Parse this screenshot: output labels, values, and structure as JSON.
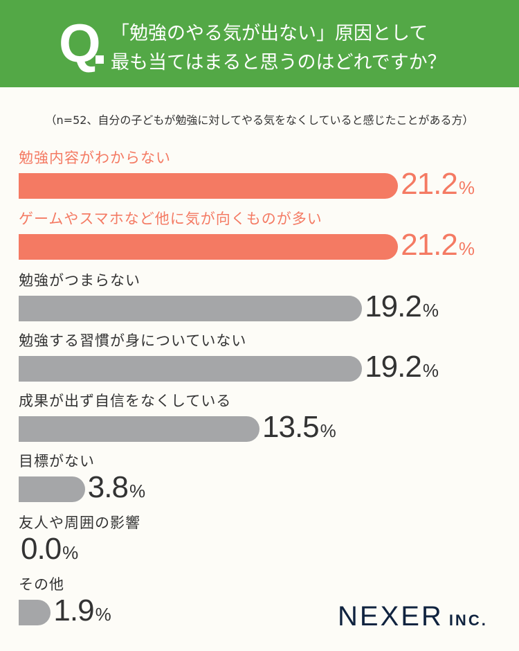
{
  "header": {
    "q_mark": "Q.",
    "title_line1": "「勉強のやる気が出ない」原因として",
    "title_line2": "最も当てはまると思うのはどれですか？"
  },
  "note": "（n=52、自分の子どもが勉強に対してやる気をなくしていると感じたことがある方）",
  "colors": {
    "header": "#53a846",
    "highlight": "#f47a63",
    "normal": "#a5a6a8",
    "text": "#333333",
    "background": "#fdfcf7"
  },
  "chart_data": {
    "type": "bar",
    "orientation": "horizontal",
    "title": "「勉強のやる気が出ない」原因として最も当てはまると思うのはどれですか？",
    "unit": "%",
    "categories": [
      "勉強内容がわからない",
      "ゲームやスマホなど他に気が向くものが多い",
      "勉強がつまらない",
      "勉強する習慣が身についていない",
      "成果が出ず自信をなくしている",
      "目標がない",
      "友人や周囲の影響",
      "その他"
    ],
    "values": [
      21.2,
      21.2,
      19.2,
      19.2,
      13.5,
      3.8,
      0.0,
      1.9
    ],
    "value_labels": [
      "21.2",
      "21.2",
      "19.2",
      "19.2",
      "13.5",
      "3.8",
      "0.0",
      "1.9"
    ],
    "highlighted": [
      true,
      true,
      false,
      false,
      false,
      false,
      false,
      false
    ]
  },
  "logo": {
    "name": "NEXER",
    "suffix": "INC."
  }
}
